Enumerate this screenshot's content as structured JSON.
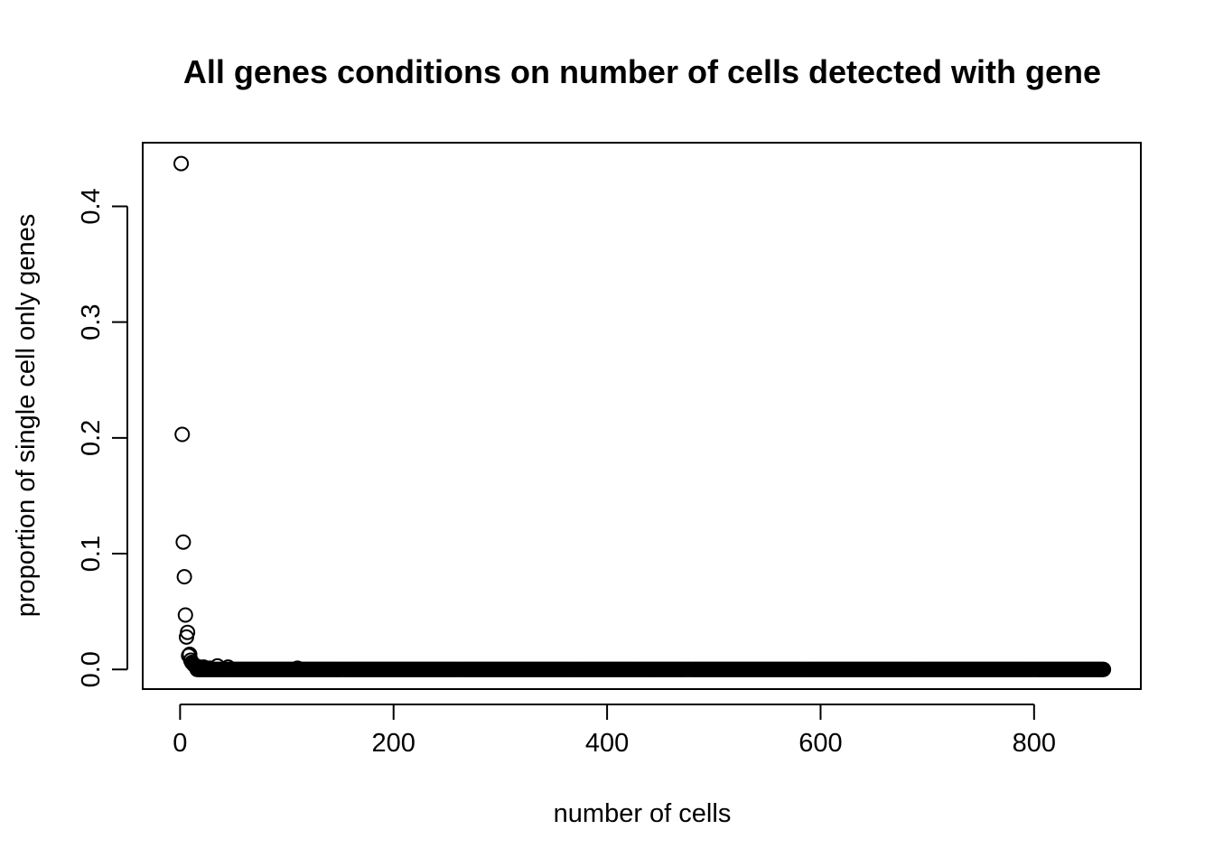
{
  "chart_data": {
    "type": "scatter",
    "title": "All genes conditions on number of cells detected with gene",
    "xlabel": "number of cells",
    "ylabel": "proportion of single cell only genes",
    "xlim": [
      -35,
      900
    ],
    "ylim": [
      -0.017,
      0.455
    ],
    "x_ticks": [
      0,
      200,
      400,
      600,
      800
    ],
    "x_tick_labels": [
      "0",
      "200",
      "400",
      "600",
      "800"
    ],
    "y_ticks": [
      0.0,
      0.1,
      0.2,
      0.3,
      0.4
    ],
    "y_tick_labels": [
      "0.0",
      "0.1",
      "0.2",
      "0.3",
      "0.4"
    ],
    "grid": false,
    "marker": "open-circle",
    "color": "#000000",
    "points": [
      {
        "x": 1,
        "y": 0.437
      },
      {
        "x": 2,
        "y": 0.203
      },
      {
        "x": 3,
        "y": 0.11
      },
      {
        "x": 4,
        "y": 0.08
      },
      {
        "x": 5,
        "y": 0.047
      },
      {
        "x": 6,
        "y": 0.028
      },
      {
        "x": 7,
        "y": 0.032
      },
      {
        "x": 8,
        "y": 0.012
      },
      {
        "x": 9,
        "y": 0.013
      },
      {
        "x": 10,
        "y": 0.008
      },
      {
        "x": 11,
        "y": 0.006
      },
      {
        "x": 12,
        "y": 0.005
      },
      {
        "x": 13,
        "y": 0.004
      },
      {
        "x": 14,
        "y": 0.003
      },
      {
        "x": 15,
        "y": 0.003
      },
      {
        "x": 16,
        "y": 0.002
      },
      {
        "x": 18,
        "y": 0.002
      },
      {
        "x": 20,
        "y": 0.001
      },
      {
        "x": 22,
        "y": 0.002
      },
      {
        "x": 25,
        "y": 0.001
      },
      {
        "x": 28,
        "y": 0.001
      },
      {
        "x": 35,
        "y": 0.003
      },
      {
        "x": 45,
        "y": 0.002
      },
      {
        "x": 110,
        "y": 0.001
      }
    ],
    "zero_run": {
      "x_start": 16,
      "x_end": 865,
      "y": 0.0
    }
  }
}
